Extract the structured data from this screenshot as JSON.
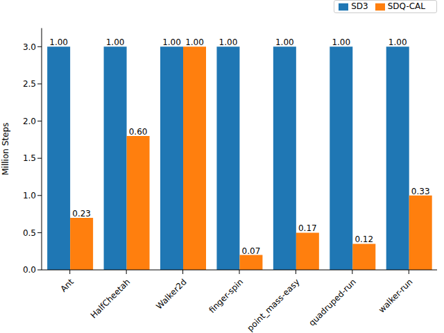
{
  "chart_data": {
    "type": "bar",
    "y_label": "Million Steps",
    "categories": [
      "Ant",
      "HalfCheetah",
      "Walker2d",
      "finger-spin",
      "point_mass-easy",
      "quadruped-run",
      "walker-run"
    ],
    "series": [
      {
        "name": "SD3",
        "color": "#1f77b4",
        "values": [
          3.0,
          3.0,
          3.0,
          3.0,
          3.0,
          3.0,
          3.0
        ],
        "bar_labels": [
          "1.00",
          "1.00",
          "1.00",
          "1.00",
          "1.00",
          "1.00",
          "1.00"
        ]
      },
      {
        "name": "SDQ-CAL",
        "color": "#ff7f0e",
        "values": [
          0.7,
          1.8,
          3.0,
          0.2,
          0.5,
          0.35,
          1.0
        ],
        "bar_labels": [
          "0.23",
          "0.60",
          "1.00",
          "0.07",
          "0.17",
          "0.12",
          "0.33"
        ]
      }
    ],
    "ylim": [
      0,
      3.25
    ],
    "yticks": [
      {
        "value": 0,
        "label": "0.0"
      },
      {
        "value": 0.5,
        "label": "0.5"
      },
      {
        "value": 1,
        "label": "1.0"
      },
      {
        "value": 1.5,
        "label": "1.5"
      },
      {
        "value": 2,
        "label": "2.0"
      },
      {
        "value": 2.5,
        "label": "2.5"
      },
      {
        "value": 3,
        "label": "3.0"
      }
    ],
    "legend": "upper right",
    "grid": false
  }
}
